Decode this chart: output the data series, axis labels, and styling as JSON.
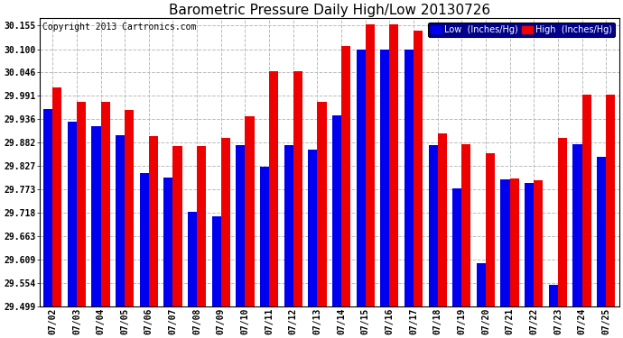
{
  "title": "Barometric Pressure Daily High/Low 20130726",
  "copyright": "Copyright 2013 Cartronics.com",
  "legend_low": "Low  (Inches/Hg)",
  "legend_high": "High  (Inches/Hg)",
  "dates": [
    "07/02",
    "07/03",
    "07/04",
    "07/05",
    "07/06",
    "07/07",
    "07/08",
    "07/09",
    "07/10",
    "07/11",
    "07/12",
    "07/13",
    "07/14",
    "07/15",
    "07/16",
    "07/17",
    "07/18",
    "07/19",
    "07/20",
    "07/21",
    "07/22",
    "07/23",
    "07/24",
    "07/25"
  ],
  "low": [
    29.96,
    29.93,
    29.92,
    29.9,
    29.81,
    29.8,
    29.72,
    29.71,
    29.875,
    29.825,
    29.875,
    29.865,
    29.945,
    30.1,
    30.1,
    30.1,
    29.875,
    29.775,
    29.6,
    29.795,
    29.788,
    29.55,
    29.878,
    29.848
  ],
  "high": [
    30.01,
    29.978,
    29.978,
    29.958,
    29.898,
    29.873,
    29.873,
    29.893,
    29.943,
    30.048,
    30.048,
    29.978,
    30.108,
    30.158,
    30.158,
    30.143,
    29.903,
    29.878,
    29.858,
    29.798,
    29.793,
    29.893,
    29.993,
    29.993
  ],
  "ylim_min": 29.499,
  "ylim_max": 30.172,
  "yticks": [
    29.499,
    29.554,
    29.609,
    29.663,
    29.718,
    29.773,
    29.827,
    29.882,
    29.936,
    29.991,
    30.046,
    30.1,
    30.155
  ],
  "low_color": "#0000ee",
  "high_color": "#ee0000",
  "bg_color": "#ffffff",
  "grid_color": "#bbbbbb",
  "title_fontsize": 11,
  "copyright_fontsize": 7
}
